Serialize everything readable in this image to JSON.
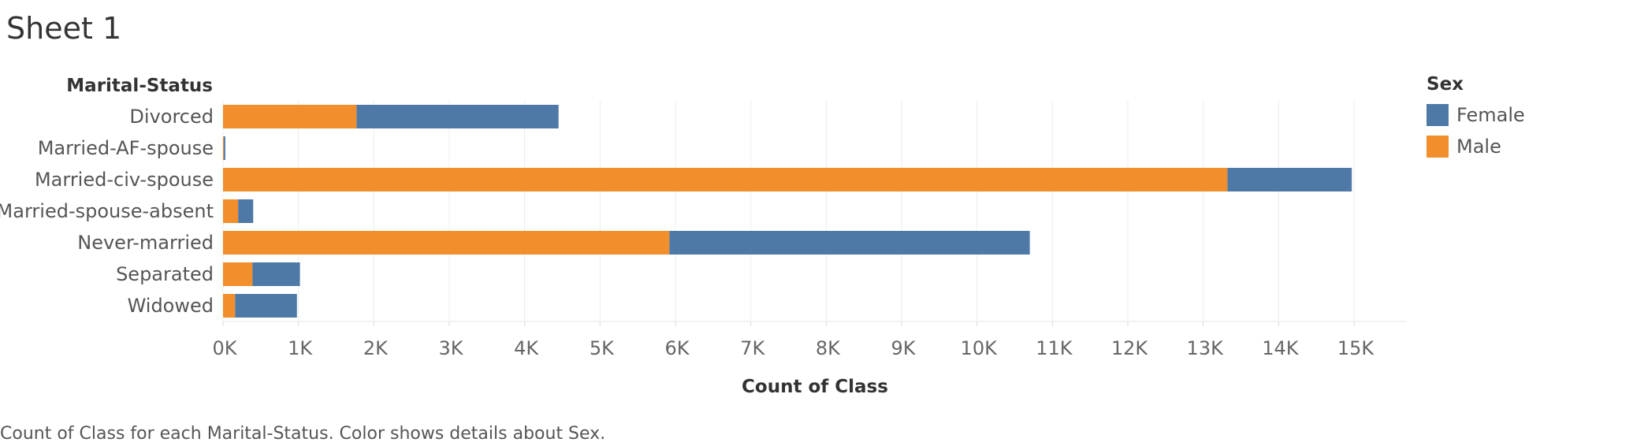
{
  "sheet": {
    "title": "Sheet 1",
    "caption": "Count of Class for each Marital-Status.  Color shows details about Sex."
  },
  "chart_data": {
    "type": "bar",
    "orientation": "horizontal",
    "stacked": true,
    "row_header": "Marital-Status",
    "categories": [
      "Divorced",
      "Married-AF-spouse",
      "Married-civ-spouse",
      "Married-spouse-absent",
      "Never-married",
      "Separated",
      "Widowed"
    ],
    "series": [
      {
        "name": "Male",
        "color": "#f28e2b",
        "values": [
          1770,
          10,
          13320,
          200,
          5920,
          390,
          160
        ]
      },
      {
        "name": "Female",
        "color": "#4e79a7",
        "values": [
          2680,
          20,
          1650,
          200,
          4780,
          630,
          820
        ]
      }
    ],
    "xlabel": "Count of Class",
    "ylabel": "Marital-Status",
    "xlim": [
      0,
      15700
    ],
    "x_ticks": [
      0,
      1000,
      2000,
      3000,
      4000,
      5000,
      6000,
      7000,
      8000,
      9000,
      10000,
      11000,
      12000,
      13000,
      14000,
      15000
    ],
    "x_tick_labels": [
      "0K",
      "1K",
      "2K",
      "3K",
      "4K",
      "5K",
      "6K",
      "7K",
      "8K",
      "9K",
      "10K",
      "11K",
      "12K",
      "13K",
      "14K",
      "15K"
    ],
    "grid": true,
    "legend": {
      "title": "Sex",
      "position": "right",
      "items": [
        {
          "label": "Female",
          "color": "#4e79a7"
        },
        {
          "label": "Male",
          "color": "#f28e2b"
        }
      ]
    }
  }
}
